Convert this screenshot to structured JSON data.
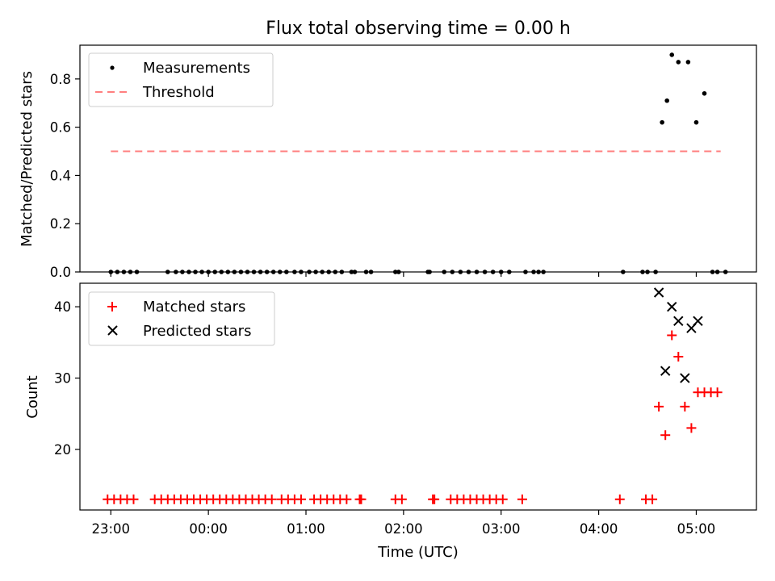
{
  "chart_data": [
    {
      "type": "scatter",
      "title": "Flux total observing time = 0.00 h",
      "xlabel": "",
      "ylabel": "Matched/Predicted stars",
      "ylim": [
        0,
        0.94
      ],
      "yticks": [
        "0.0",
        "0.2",
        "0.4",
        "0.6",
        "0.8"
      ],
      "ytick_values": [
        0,
        0.2,
        0.4,
        0.6,
        0.8
      ],
      "legend_placement": "upper-left",
      "legend": [
        {
          "label": "Measurements",
          "marker": "dot"
        },
        {
          "label": "Threshold",
          "marker": "dashed-line"
        }
      ],
      "threshold": {
        "value": 0.5,
        "x_start": "23:00",
        "x_end": "05:15"
      },
      "series": [
        {
          "name": "Measurements",
          "color": "#000000",
          "x": [
            "23:00",
            "23:04",
            "23:08",
            "23:12",
            "23:16",
            "23:35",
            "23:40",
            "23:44",
            "23:48",
            "23:52",
            "23:56",
            "00:00",
            "00:04",
            "00:08",
            "00:12",
            "00:16",
            "00:20",
            "00:24",
            "00:28",
            "00:32",
            "00:36",
            "00:40",
            "00:44",
            "00:48",
            "00:53",
            "00:57",
            "01:02",
            "01:06",
            "01:10",
            "01:14",
            "01:18",
            "01:22",
            "01:28",
            "01:30",
            "01:37",
            "01:40",
            "01:55",
            "01:57",
            "02:15",
            "02:16",
            "02:25",
            "02:30",
            "02:35",
            "02:40",
            "02:45",
            "02:50",
            "02:55",
            "03:00",
            "03:05",
            "03:15",
            "03:20",
            "03:23",
            "03:26",
            "04:15",
            "04:27",
            "04:30",
            "04:35",
            "04:39",
            "04:42",
            "04:45",
            "04:49",
            "04:55",
            "05:00",
            "05:05",
            "05:10",
            "05:13",
            "05:18"
          ],
          "y": [
            0,
            0,
            0,
            0,
            0,
            0,
            0,
            0,
            0,
            0,
            0,
            0,
            0,
            0,
            0,
            0,
            0,
            0,
            0,
            0,
            0,
            0,
            0,
            0,
            0,
            0,
            0,
            0,
            0,
            0,
            0,
            0,
            0,
            0,
            0,
            0,
            0,
            0,
            0,
            0,
            0,
            0,
            0,
            0,
            0,
            0,
            0,
            0,
            0,
            0,
            0,
            0,
            0,
            0,
            0,
            0,
            0,
            0.62,
            0.71,
            0.9,
            0.87,
            0.87,
            0.62,
            0.74,
            0,
            0,
            0
          ]
        }
      ]
    },
    {
      "type": "scatter",
      "title": "",
      "xlabel": "Time (UTC)",
      "ylabel": "Count",
      "ylim": [
        11.5,
        43.3
      ],
      "yticks": [
        "20",
        "30",
        "40"
      ],
      "ytick_values": [
        20,
        30,
        40
      ],
      "xticks": [
        "23:00",
        "00:00",
        "01:00",
        "02:00",
        "03:00",
        "04:00",
        "05:00"
      ],
      "xlim": [
        "22:41",
        "05:37"
      ],
      "legend_placement": "upper-left",
      "legend": [
        {
          "label": "Matched stars",
          "marker": "plus",
          "color": "#ff0000"
        },
        {
          "label": "Predicted stars",
          "marker": "x",
          "color": "#000000"
        }
      ],
      "series": [
        {
          "name": "Matched stars",
          "color": "#ff0000",
          "x": [
            "22:58",
            "23:02",
            "23:06",
            "23:10",
            "23:14",
            "23:27",
            "23:31",
            "23:35",
            "23:39",
            "23:43",
            "23:47",
            "23:51",
            "23:55",
            "23:59",
            "00:03",
            "00:07",
            "00:11",
            "00:15",
            "00:19",
            "00:23",
            "00:27",
            "00:31",
            "00:35",
            "00:39",
            "00:45",
            "00:49",
            "00:53",
            "00:57",
            "01:05",
            "01:09",
            "01:13",
            "01:17",
            "01:21",
            "01:25",
            "01:33",
            "01:34",
            "01:55",
            "01:59",
            "02:18",
            "02:19",
            "02:29",
            "02:33",
            "02:37",
            "02:41",
            "02:45",
            "02:49",
            "02:53",
            "02:57",
            "03:01",
            "03:13",
            "04:13",
            "04:29",
            "04:33",
            "04:37",
            "04:41",
            "04:45",
            "04:49",
            "04:53",
            "04:57",
            "05:01",
            "05:05",
            "05:09",
            "05:13"
          ],
          "y": [
            13,
            13,
            13,
            13,
            13,
            13,
            13,
            13,
            13,
            13,
            13,
            13,
            13,
            13,
            13,
            13,
            13,
            13,
            13,
            13,
            13,
            13,
            13,
            13,
            13,
            13,
            13,
            13,
            13,
            13,
            13,
            13,
            13,
            13,
            13,
            13,
            13,
            13,
            13,
            13,
            13,
            13,
            13,
            13,
            13,
            13,
            13,
            13,
            13,
            13,
            13,
            13,
            13,
            26,
            22,
            36,
            33,
            26,
            23,
            28,
            28,
            28,
            28
          ]
        },
        {
          "name": "Predicted stars",
          "color": "#000000",
          "x": [
            "04:37",
            "04:41",
            "04:45",
            "04:49",
            "04:53",
            "04:57",
            "05:01"
          ],
          "y": [
            42,
            31,
            40,
            38,
            30,
            37,
            38
          ]
        }
      ]
    }
  ]
}
